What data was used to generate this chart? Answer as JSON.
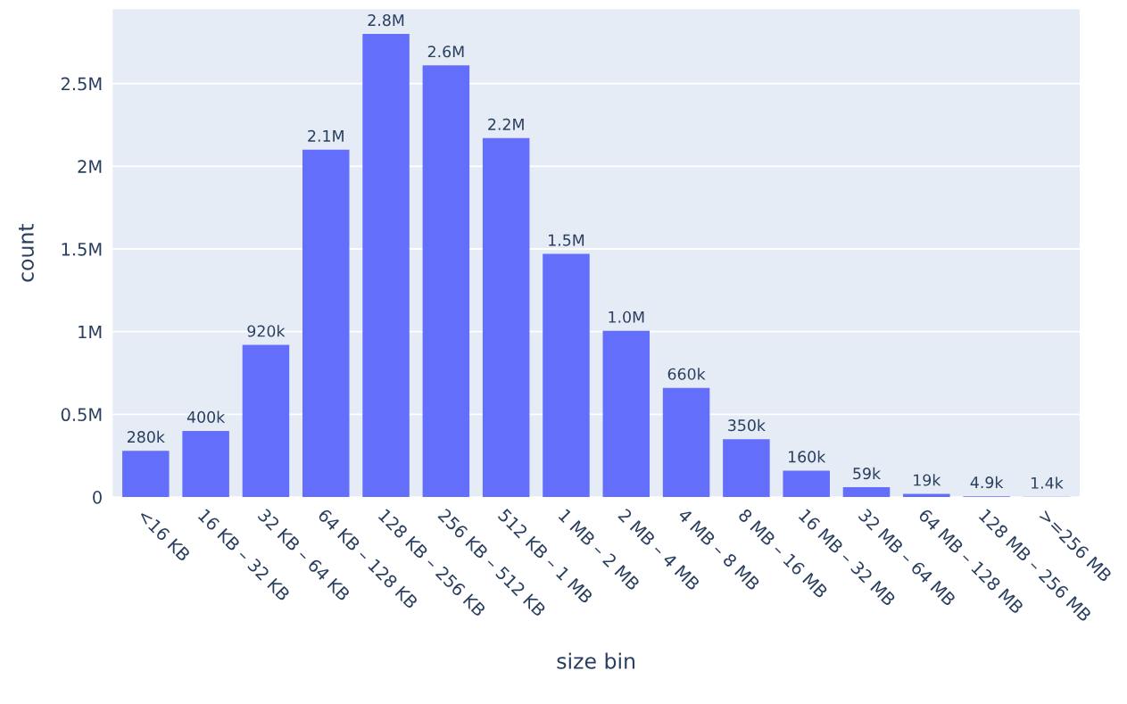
{
  "chart_data": {
    "type": "bar",
    "xlabel": "size bin",
    "ylabel": "count",
    "categories": [
      "<16 KB",
      "16 KB – 32 KB",
      "32 KB – 64 KB",
      "64 KB – 128 KB",
      "128 KB – 256 KB",
      "256 KB – 512 KB",
      "512 KB – 1 MB",
      "1 MB – 2 MB",
      "2 MB – 4 MB",
      "4 MB – 8 MB",
      "8 MB – 16 MB",
      "16 MB – 32 MB",
      "32 MB – 64 MB",
      "64 MB – 128 MB",
      "128 MB – 256 MB",
      ">=256 MB"
    ],
    "values": [
      280000,
      400000,
      920000,
      2100000,
      2800000,
      2610000,
      2170000,
      1470000,
      1005000,
      660000,
      350000,
      160000,
      59000,
      19000,
      4900,
      1400
    ],
    "value_labels": [
      "280k",
      "400k",
      "920k",
      "2.1M",
      "2.8M",
      "2.6M",
      "2.2M",
      "1.5M",
      "1.0M",
      "660k",
      "350k",
      "160k",
      "59k",
      "19k",
      "4.9k",
      "1.4k"
    ],
    "color": "#636efa",
    "ylim": [
      0,
      2950000
    ],
    "yticks": [
      0,
      {
        "value": 500000,
        "label": "0.5M"
      },
      {
        "value": 1000000,
        "label": "1M"
      },
      {
        "value": 1500000,
        "label": "1.5M"
      },
      {
        "value": 2000000,
        "label": "2M"
      },
      {
        "value": 2500000,
        "label": "2.5M"
      }
    ],
    "grid": "y",
    "legend": false
  }
}
